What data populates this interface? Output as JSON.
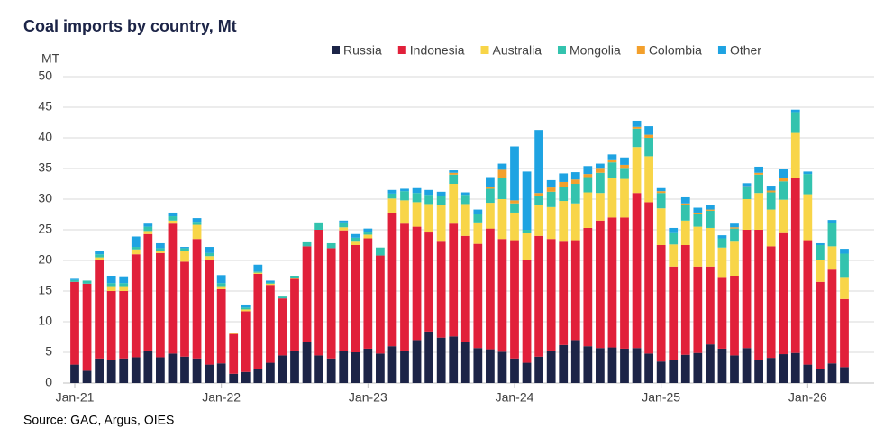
{
  "chart_data": {
    "type": "stacked-bar",
    "title": "Coal imports by country, Mt",
    "y_label": "MT",
    "source": "Source: GAC, Argus, OIES",
    "categories": [
      "Jan-21",
      null,
      null,
      null,
      null,
      null,
      null,
      null,
      null,
      null,
      null,
      null,
      "Jan-22",
      null,
      null,
      null,
      null,
      null,
      null,
      null,
      null,
      null,
      null,
      null,
      "Jan-23",
      null,
      null,
      null,
      null,
      null,
      null,
      null,
      null,
      null,
      null,
      null,
      "Jan-24",
      null,
      null,
      null,
      null,
      null,
      null,
      null,
      null,
      null,
      null,
      null,
      "Jan-25",
      null,
      null,
      null,
      null,
      null,
      null,
      null,
      null,
      null,
      null,
      null,
      "Jan-26",
      null,
      null,
      null
    ],
    "series": [
      {
        "name": "Russia",
        "color": "#1c2447",
        "values": [
          3,
          2,
          4,
          3.7,
          4,
          4.2,
          5.3,
          4.2,
          4.8,
          4.3,
          4,
          3,
          3.2,
          1.5,
          1.8,
          2.3,
          3.3,
          4.5,
          5.3,
          6.7,
          4.5,
          4,
          5.2,
          5,
          5.6,
          4.8,
          6,
          5.3,
          7,
          8.4,
          7.4,
          7.6,
          6.7,
          5.7,
          5.5,
          5.1,
          4,
          3.3,
          4.3,
          5.3,
          6.2,
          7,
          6,
          5.7,
          5.8,
          5.6,
          5.7,
          4.8,
          3.5,
          3.7,
          4.6,
          4.9,
          6.3,
          5.6,
          4.5,
          5.7,
          3.8,
          4.1,
          4.7,
          4.9,
          3,
          2.3,
          3.2,
          2.6
        ]
      },
      {
        "name": "Indonesia",
        "color": "#e1203a",
        "values": [
          13.5,
          14.2,
          16,
          11.3,
          11,
          16.8,
          19,
          17,
          21.2,
          15.5,
          19.5,
          17,
          12.1,
          6.5,
          9.9,
          15.5,
          12.7,
          9.3,
          11.7,
          15.6,
          20.5,
          18,
          19.7,
          17.5,
          18,
          16,
          21.8,
          20.7,
          18.5,
          16.3,
          15.8,
          18.4,
          17.3,
          17,
          19.7,
          18.4,
          19.3,
          16.7,
          19.7,
          18.2,
          17,
          16.3,
          19.3,
          20.8,
          21.2,
          21.4,
          25.3,
          24.7,
          19,
          15.3,
          17.9,
          14.1,
          12.7,
          11.7,
          13,
          19.3,
          21.2,
          18.2,
          19.9,
          28.6,
          20.3,
          14.2,
          15.3,
          11.1
        ]
      },
      {
        "name": "Australia",
        "color": "#f8d548",
        "values": [
          0,
          0,
          0.5,
          0.8,
          0.8,
          0.8,
          0.5,
          0.3,
          0.5,
          1.7,
          2.3,
          0.7,
          0.5,
          0.2,
          0.3,
          0.2,
          0.2,
          0,
          0.2,
          0,
          0,
          0,
          0.5,
          0.7,
          0.6,
          0,
          2.3,
          3.8,
          4,
          4.5,
          5.8,
          6.5,
          5.2,
          3.5,
          4.2,
          6.5,
          4.5,
          4.5,
          5,
          5.2,
          6.5,
          6,
          5.8,
          4.5,
          6.5,
          6.3,
          7.5,
          7.5,
          6,
          3.6,
          4,
          6.5,
          6.3,
          4.8,
          5.7,
          5,
          6,
          6,
          5.3,
          7.3,
          7.5,
          3.5,
          3.8,
          3.6
        ]
      },
      {
        "name": "Mongolia",
        "color": "#33c3ae",
        "values": [
          0.3,
          0.5,
          0.5,
          0.5,
          0.5,
          0.4,
          0.7,
          0.5,
          0.7,
          0.5,
          0.5,
          0.5,
          0.5,
          0,
          0.3,
          0.2,
          0.2,
          0.3,
          0.3,
          0.8,
          1.2,
          0.8,
          0.8,
          0.5,
          0.5,
          1.3,
          0.8,
          1.5,
          1.5,
          1.5,
          1.5,
          1.5,
          1.5,
          1.3,
          2.3,
          3.5,
          1.5,
          0.5,
          1.5,
          2.5,
          2.3,
          3.2,
          2.5,
          3.3,
          2.5,
          1.8,
          3,
          3,
          2.5,
          2,
          2.5,
          2,
          2.8,
          1.5,
          2,
          2,
          3,
          2.8,
          3,
          3.4,
          3.3,
          2.5,
          3.8,
          3.8
        ]
      },
      {
        "name": "Colombia",
        "color": "#f3a02c",
        "values": [
          0,
          0,
          0,
          0,
          0,
          0,
          0,
          0,
          0,
          0,
          0,
          0,
          0,
          0,
          0,
          0,
          0,
          0,
          0,
          0,
          0,
          0,
          0,
          0,
          0,
          0,
          0,
          0,
          0,
          0,
          0,
          0.3,
          0,
          0,
          0.3,
          1.3,
          0.5,
          0,
          0.5,
          0.7,
          0.8,
          0.7,
          0.5,
          0.8,
          0.5,
          0.5,
          0.3,
          0.5,
          0.3,
          0,
          0.3,
          0.3,
          0.2,
          0,
          0.2,
          0.1,
          0.3,
          0.3,
          0.5,
          0,
          0,
          0,
          0,
          0
        ]
      },
      {
        "name": "Other",
        "color": "#1ea3e2",
        "values": [
          0.2,
          0,
          0.6,
          1.2,
          1.1,
          1.7,
          0.5,
          0.8,
          0.6,
          0.2,
          0.6,
          1,
          1.3,
          0,
          0.5,
          1.1,
          0.3,
          0,
          0,
          0,
          0,
          0,
          0.3,
          0.6,
          0.5,
          0,
          0.6,
          0.4,
          0.8,
          0.8,
          0.7,
          0.4,
          0.4,
          0.8,
          1.6,
          1,
          8.8,
          9.5,
          10.3,
          1.2,
          1.4,
          1.2,
          1.3,
          0.7,
          0.8,
          1.2,
          1,
          1.4,
          0.5,
          0.7,
          1,
          0.8,
          0.7,
          0.5,
          0.6,
          0.5,
          1,
          0.8,
          1.6,
          0.4,
          0.4,
          0.3,
          0.5,
          0.8
        ]
      }
    ],
    "ylim": [
      0,
      50
    ],
    "yticks": [
      0,
      5,
      10,
      15,
      20,
      25,
      30,
      35,
      40,
      45,
      50
    ],
    "grid": true
  }
}
